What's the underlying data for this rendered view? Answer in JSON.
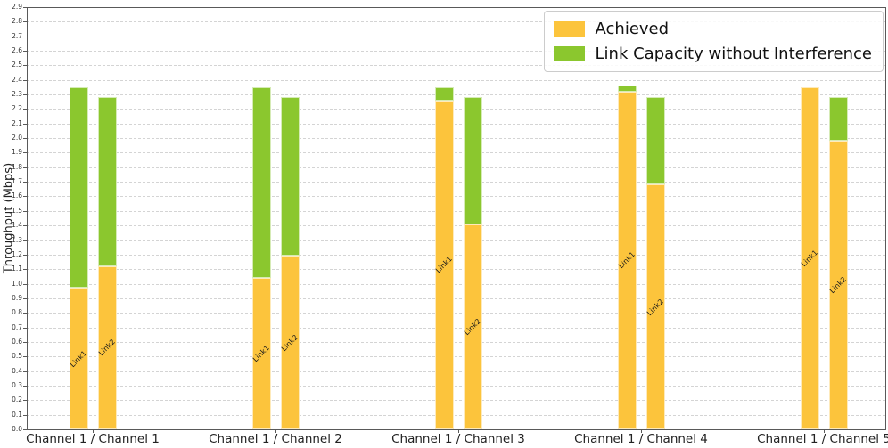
{
  "chart_data": {
    "type": "bar",
    "stacked": true,
    "title": "",
    "xlabel": "",
    "ylabel": "Throughput (Mbps)",
    "ylim": [
      0.0,
      2.9
    ],
    "ytick_step": 0.1,
    "grid": "horizontal-dashed",
    "bar_labels": [
      "Link1",
      "Link2"
    ],
    "legend": {
      "position": "upper-right",
      "entries": [
        {
          "label": "Achieved",
          "color": "#FCC43C"
        },
        {
          "label": "Link Capacity without Interference",
          "color": "#8BC72E"
        }
      ]
    },
    "colors": {
      "achieved": "#FCC43C",
      "capacity": "#8BC72E",
      "grid": "#d4d4d4",
      "spine": "#595959"
    },
    "categories": [
      "Channel 1 / Channel 1",
      "Channel 1 / Channel 2",
      "Channel 1 / Channel 3",
      "Channel 1 / Channel 4",
      "Channel 1 / Channel 5"
    ],
    "groups": [
      {
        "category": "Channel 1 / Channel 1",
        "bars": [
          {
            "name": "Link1",
            "achieved": 0.97,
            "capacity": 2.35
          },
          {
            "name": "Link2",
            "achieved": 1.12,
            "capacity": 2.28
          }
        ]
      },
      {
        "category": "Channel 1 / Channel 2",
        "bars": [
          {
            "name": "Link1",
            "achieved": 1.04,
            "capacity": 2.35
          },
          {
            "name": "Link2",
            "achieved": 1.19,
            "capacity": 2.28
          }
        ]
      },
      {
        "category": "Channel 1 / Channel 3",
        "bars": [
          {
            "name": "Link1",
            "achieved": 2.26,
            "capacity": 2.35
          },
          {
            "name": "Link2",
            "achieved": 1.41,
            "capacity": 2.28
          }
        ]
      },
      {
        "category": "Channel 1 / Channel 4",
        "bars": [
          {
            "name": "Link1",
            "achieved": 2.32,
            "capacity": 2.36
          },
          {
            "name": "Link2",
            "achieved": 1.68,
            "capacity": 2.28
          }
        ]
      },
      {
        "category": "Channel 1 / Channel 5",
        "bars": [
          {
            "name": "Link1",
            "achieved": 2.35,
            "capacity": 2.35
          },
          {
            "name": "Link2",
            "achieved": 1.98,
            "capacity": 2.28
          }
        ]
      }
    ]
  }
}
